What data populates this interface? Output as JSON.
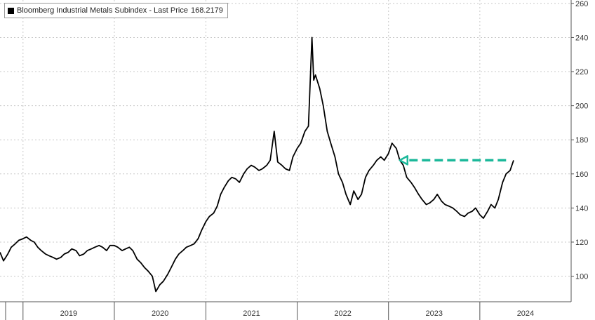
{
  "chart_data": {
    "type": "line",
    "legend": {
      "label": "Bloomberg Industrial Metals Subindex - Last Price",
      "value": "168.2179",
      "placement": "top-left"
    },
    "x_ticks": [
      "2019",
      "2020",
      "2021",
      "2022",
      "2023",
      "2024"
    ],
    "y_ticks": [
      "100",
      "120",
      "140",
      "160",
      "180",
      "200",
      "220",
      "240",
      "260"
    ],
    "ylim": [
      85,
      262
    ],
    "xlim": [
      "2018-10-01",
      "2024-12-31"
    ],
    "grid": true,
    "series": [
      {
        "name": "Bloomberg Industrial Metals Subindex",
        "color": "#000000",
        "x": [
          "2018-10-01",
          "2018-10-15",
          "2018-11-01",
          "2018-11-15",
          "2018-12-01",
          "2018-12-15",
          "2019-01-01",
          "2019-01-15",
          "2019-02-01",
          "2019-02-15",
          "2019-03-01",
          "2019-03-15",
          "2019-04-01",
          "2019-04-15",
          "2019-05-01",
          "2019-05-15",
          "2019-06-01",
          "2019-06-15",
          "2019-07-01",
          "2019-07-15",
          "2019-08-01",
          "2019-08-15",
          "2019-09-01",
          "2019-09-15",
          "2019-10-01",
          "2019-10-15",
          "2019-11-01",
          "2019-11-15",
          "2019-12-01",
          "2019-12-15",
          "2020-01-01",
          "2020-01-15",
          "2020-02-01",
          "2020-02-15",
          "2020-03-01",
          "2020-03-15",
          "2020-04-01",
          "2020-04-15",
          "2020-05-01",
          "2020-05-15",
          "2020-06-01",
          "2020-06-15",
          "2020-07-01",
          "2020-07-15",
          "2020-08-01",
          "2020-08-15",
          "2020-09-01",
          "2020-09-15",
          "2020-10-01",
          "2020-10-15",
          "2020-11-01",
          "2020-11-15",
          "2020-12-01",
          "2020-12-15",
          "2021-01-01",
          "2021-01-15",
          "2021-02-01",
          "2021-02-15",
          "2021-03-01",
          "2021-03-15",
          "2021-04-01",
          "2021-04-15",
          "2021-05-01",
          "2021-05-15",
          "2021-06-01",
          "2021-06-15",
          "2021-07-01",
          "2021-07-15",
          "2021-08-01",
          "2021-08-15",
          "2021-09-01",
          "2021-09-15",
          "2021-10-01",
          "2021-10-15",
          "2021-11-01",
          "2021-11-15",
          "2021-12-01",
          "2021-12-15",
          "2022-01-01",
          "2022-01-15",
          "2022-02-01",
          "2022-02-15",
          "2022-03-01",
          "2022-03-08",
          "2022-03-15",
          "2022-04-01",
          "2022-04-15",
          "2022-05-01",
          "2022-05-15",
          "2022-06-01",
          "2022-06-15",
          "2022-07-01",
          "2022-07-15",
          "2022-08-01",
          "2022-08-15",
          "2022-09-01",
          "2022-09-15",
          "2022-10-01",
          "2022-10-15",
          "2022-11-01",
          "2022-11-15",
          "2022-12-01",
          "2022-12-15",
          "2023-01-01",
          "2023-01-15",
          "2023-02-01",
          "2023-02-15",
          "2023-03-01",
          "2023-03-15",
          "2023-04-01",
          "2023-04-15",
          "2023-05-01",
          "2023-05-15",
          "2023-06-01",
          "2023-06-15",
          "2023-07-01",
          "2023-07-15",
          "2023-08-01",
          "2023-08-15",
          "2023-09-01",
          "2023-09-15",
          "2023-10-01",
          "2023-10-15",
          "2023-11-01",
          "2023-11-15",
          "2023-12-01",
          "2023-12-15",
          "2024-01-01",
          "2024-01-15",
          "2024-02-01",
          "2024-02-15",
          "2024-03-01",
          "2024-03-15",
          "2024-04-01",
          "2024-04-15",
          "2024-05-01",
          "2024-05-15"
        ],
        "y": [
          114,
          109,
          113,
          117,
          119,
          121,
          122,
          123,
          121,
          120,
          117,
          115,
          113,
          112,
          111,
          110,
          111,
          113,
          114,
          116,
          115,
          112,
          113,
          115,
          116,
          117,
          118,
          117,
          115,
          118,
          118,
          117,
          115,
          116,
          117,
          115,
          110,
          108,
          105,
          103,
          100,
          91,
          95,
          97,
          101,
          105,
          110,
          113,
          115,
          117,
          118,
          119,
          122,
          127,
          132,
          135,
          137,
          141,
          148,
          152,
          156,
          158,
          157,
          155,
          160,
          163,
          165,
          164,
          162,
          163,
          165,
          168,
          185,
          167,
          165,
          163,
          162,
          170,
          175,
          178,
          185,
          188,
          240,
          215,
          218,
          210,
          200,
          185,
          178,
          170,
          160,
          155,
          148,
          142,
          150,
          145,
          148,
          158,
          162,
          165,
          168,
          170,
          168,
          172,
          178,
          175,
          168,
          165,
          158,
          155,
          152,
          148,
          145,
          142,
          143,
          145,
          148,
          144,
          142,
          141,
          140,
          138,
          136,
          135,
          137,
          138,
          140,
          136,
          134,
          138,
          142,
          140,
          145,
          155,
          160,
          162,
          168
        ]
      }
    ],
    "annotation": {
      "type": "dashed-arrow",
      "color": "#1bb89a",
      "y_value": 168,
      "from_x": "2024-04-15",
      "to_x": "2023-02-15",
      "direction": "left"
    }
  }
}
